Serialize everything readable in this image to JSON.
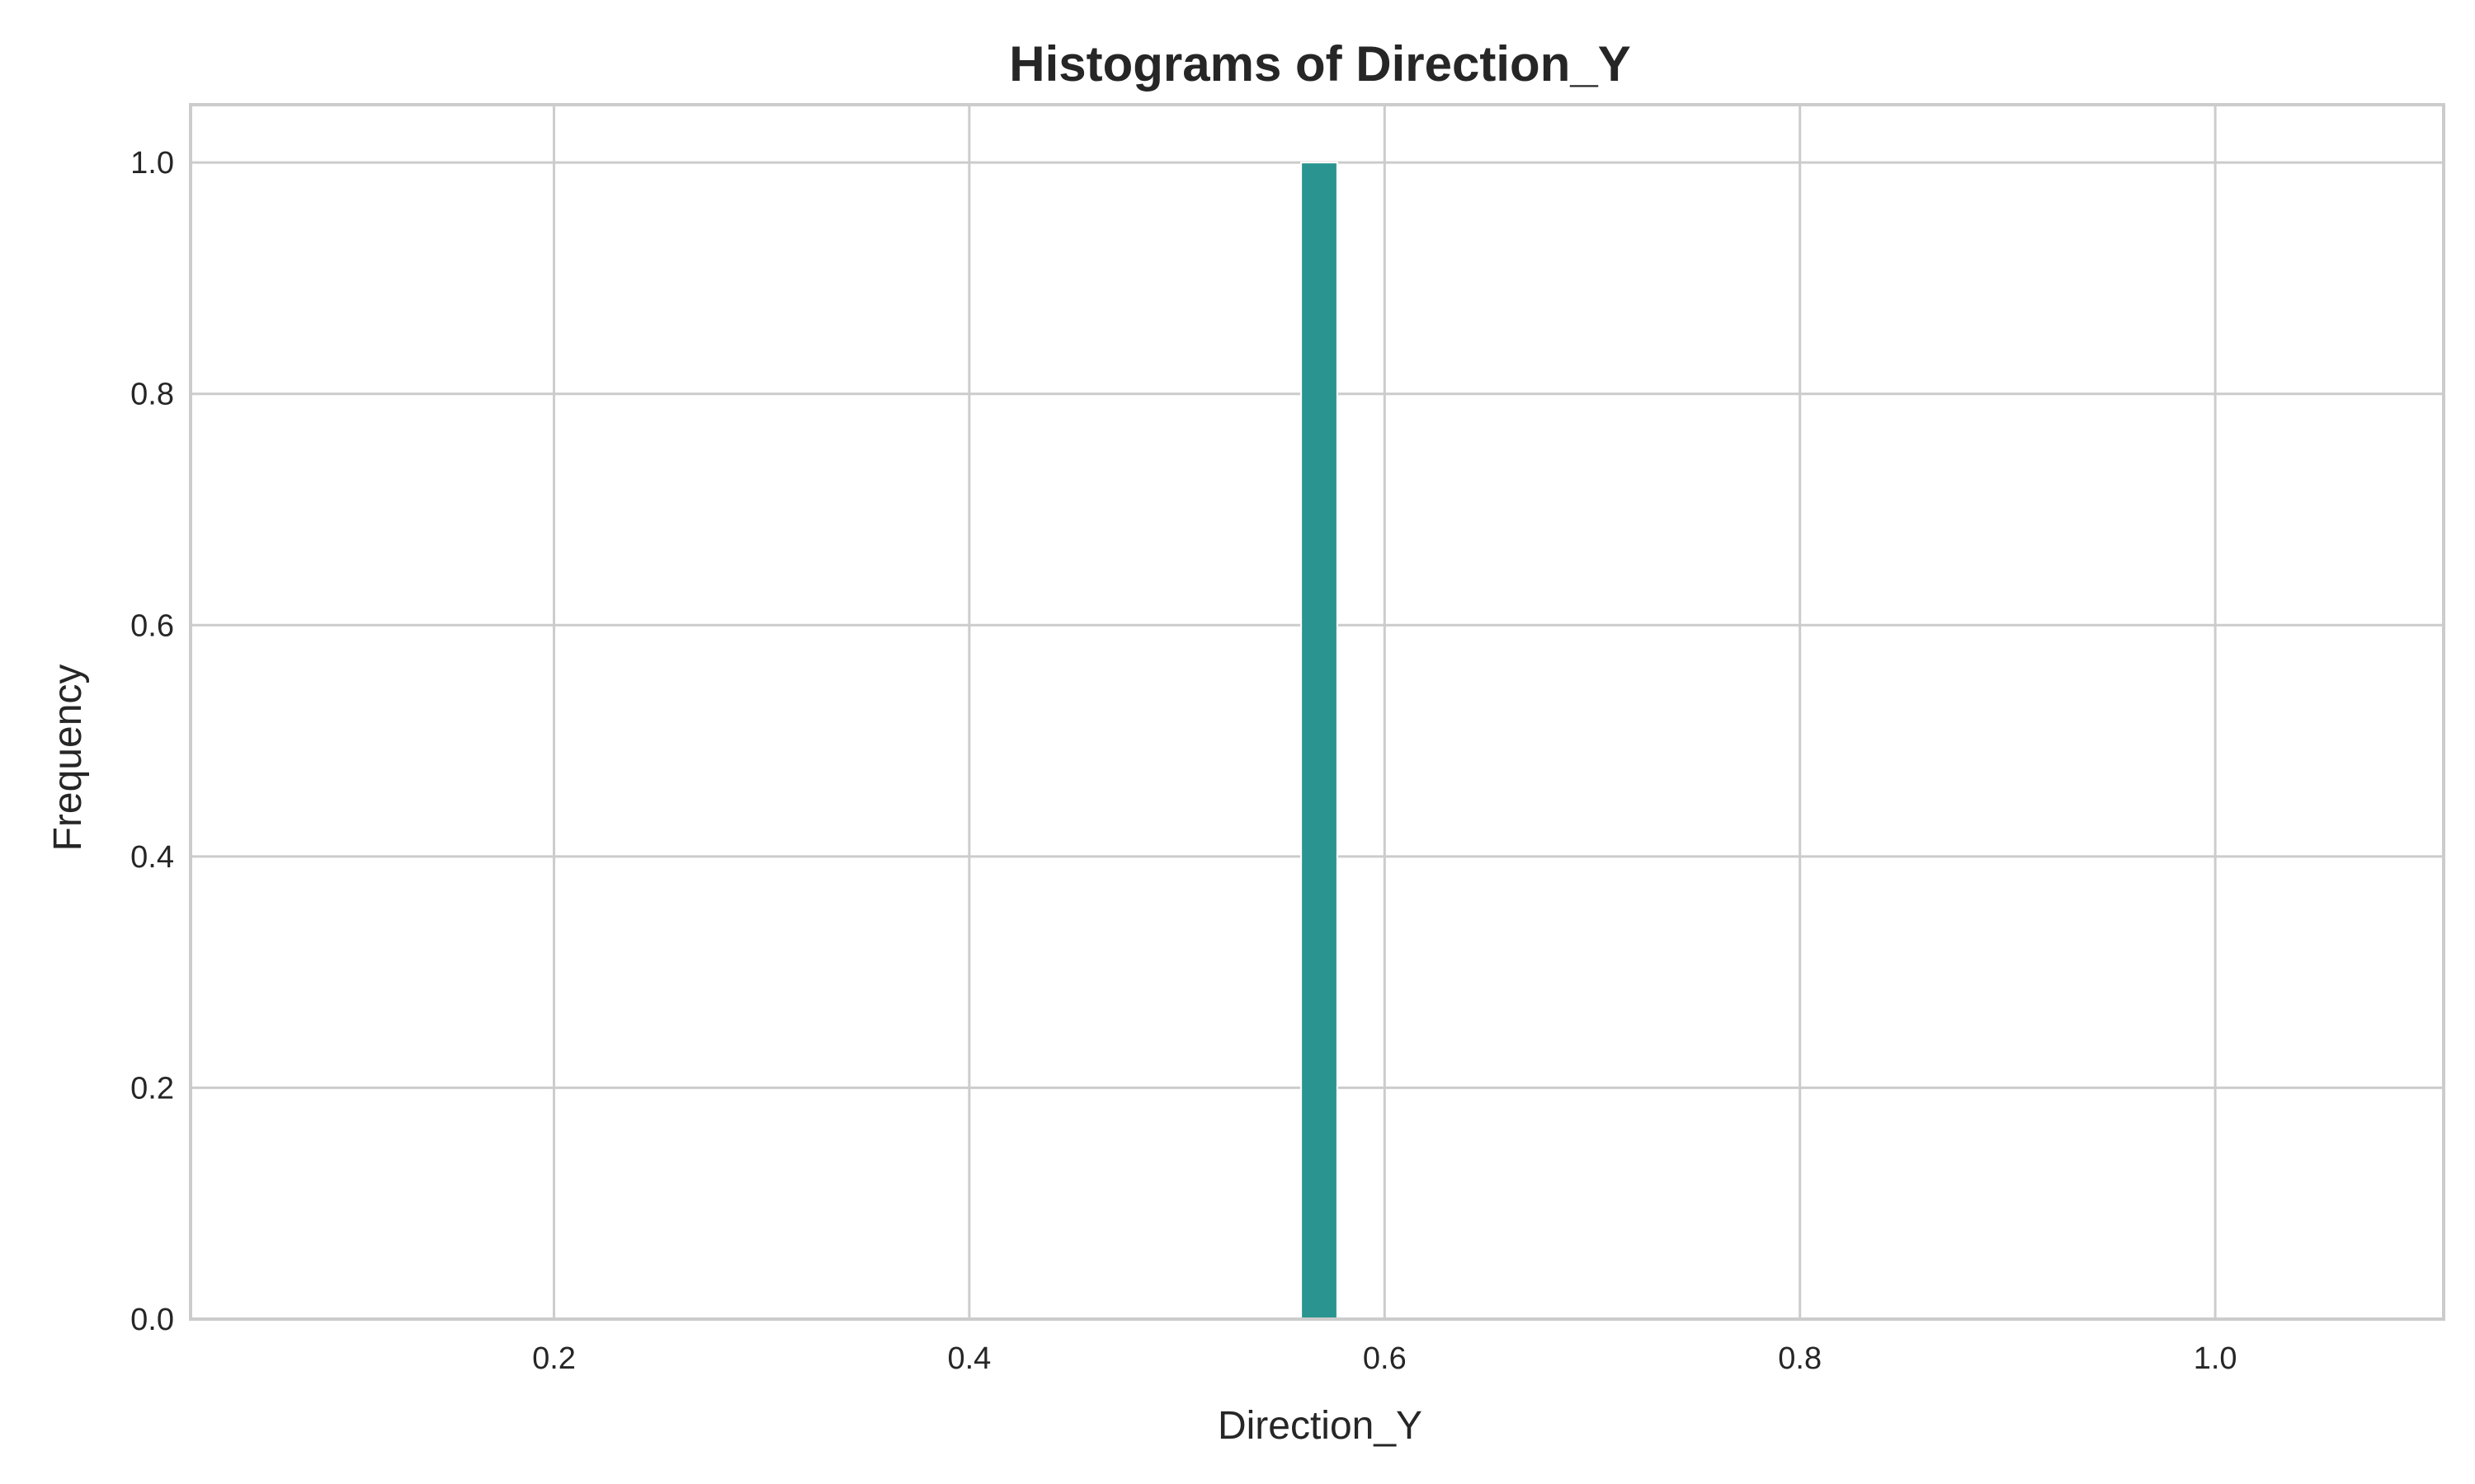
{
  "chart_data": {
    "type": "bar",
    "title": "Histograms of Direction_Y",
    "xlabel": "Direction_Y",
    "ylabel": "Frequency",
    "xlim": [
      0.025,
      1.11
    ],
    "ylim": [
      0,
      1.05
    ],
    "xticks": [
      0.2,
      0.4,
      0.6,
      0.8,
      1.0
    ],
    "xtick_labels": [
      "0.2",
      "0.4",
      "0.6",
      "0.8",
      "1.0"
    ],
    "yticks": [
      0.0,
      0.2,
      0.4,
      0.6,
      0.8,
      1.0
    ],
    "ytick_labels": [
      "0.0",
      "0.2",
      "0.4",
      "0.6",
      "0.8",
      "1.0"
    ],
    "grid": true,
    "bars": [
      {
        "x0": 0.5598,
        "x1": 0.5772,
        "value": 1.0
      }
    ],
    "colors": {
      "bar": "#2a9590",
      "grid": "#cccccc",
      "text": "#262626"
    }
  }
}
